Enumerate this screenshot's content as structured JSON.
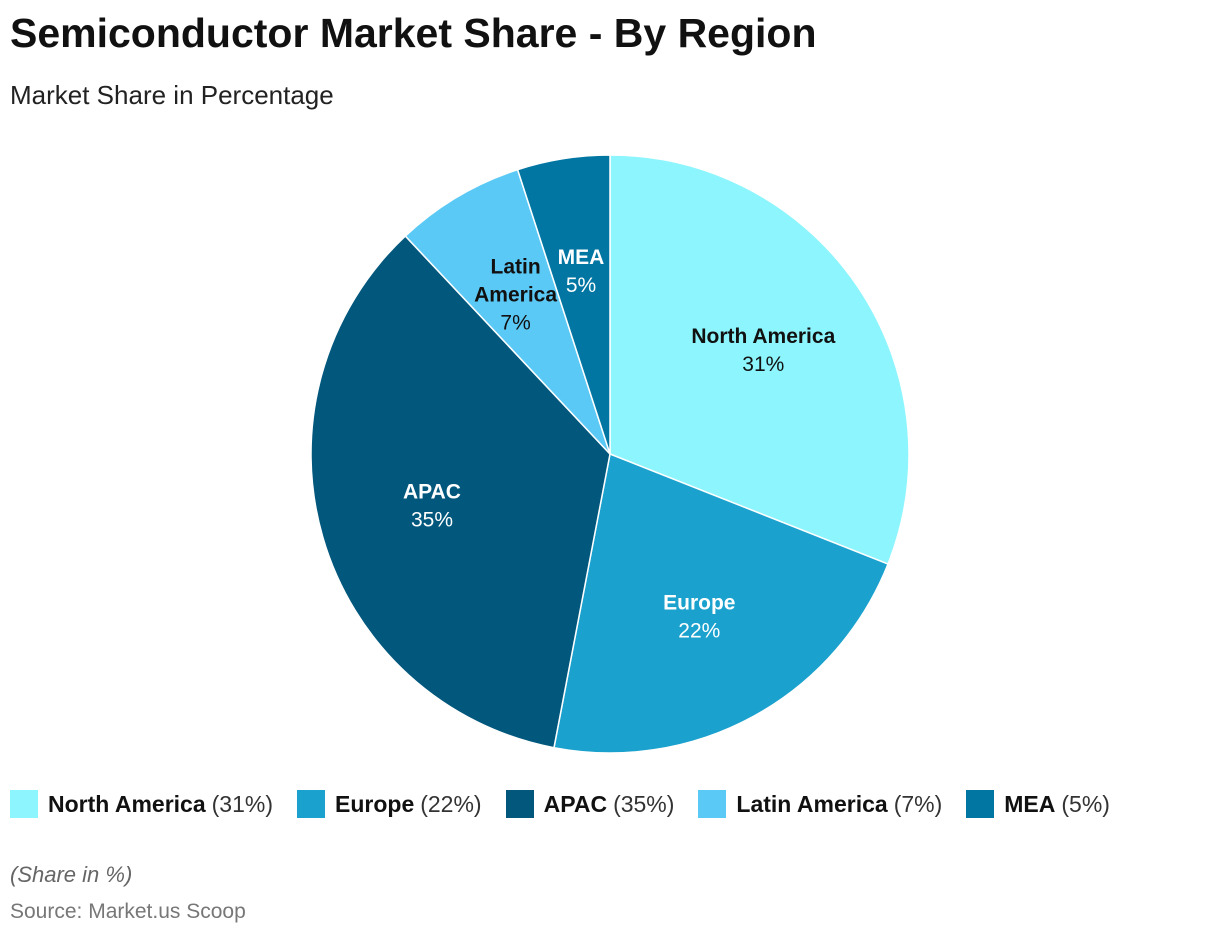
{
  "title": "Semiconductor Market Share - By Region",
  "subtitle": "Market Share in Percentage",
  "note": "(Share in %)",
  "source": "Source: Market.us Scoop",
  "chart_data": {
    "type": "pie",
    "unit": "%",
    "legend_position": "bottom",
    "slices": [
      {
        "name": "North America",
        "label_lines": [
          "North America"
        ],
        "value": 31,
        "value_label": "31%",
        "legend_value": "(31%)",
        "color": "#8cf5fd",
        "label_color": "#111111"
      },
      {
        "name": "Europe",
        "label_lines": [
          "Europe"
        ],
        "value": 22,
        "value_label": "22%",
        "legend_value": "(22%)",
        "color": "#1aa1cd",
        "label_color": "#ffffff"
      },
      {
        "name": "APAC",
        "label_lines": [
          "APAC"
        ],
        "value": 35,
        "value_label": "35%",
        "legend_value": "(35%)",
        "color": "#02577c",
        "label_color": "#ffffff"
      },
      {
        "name": "Latin America",
        "label_lines": [
          "Latin",
          "America"
        ],
        "value": 7,
        "value_label": "7%",
        "legend_value": "(7%)",
        "color": "#5bc9f6",
        "label_color": "#111111"
      },
      {
        "name": "MEA",
        "label_lines": [
          "MEA"
        ],
        "value": 5,
        "value_label": "5%",
        "legend_value": "(5%)",
        "color": "#0276a2",
        "label_color": "#ffffff"
      }
    ]
  }
}
